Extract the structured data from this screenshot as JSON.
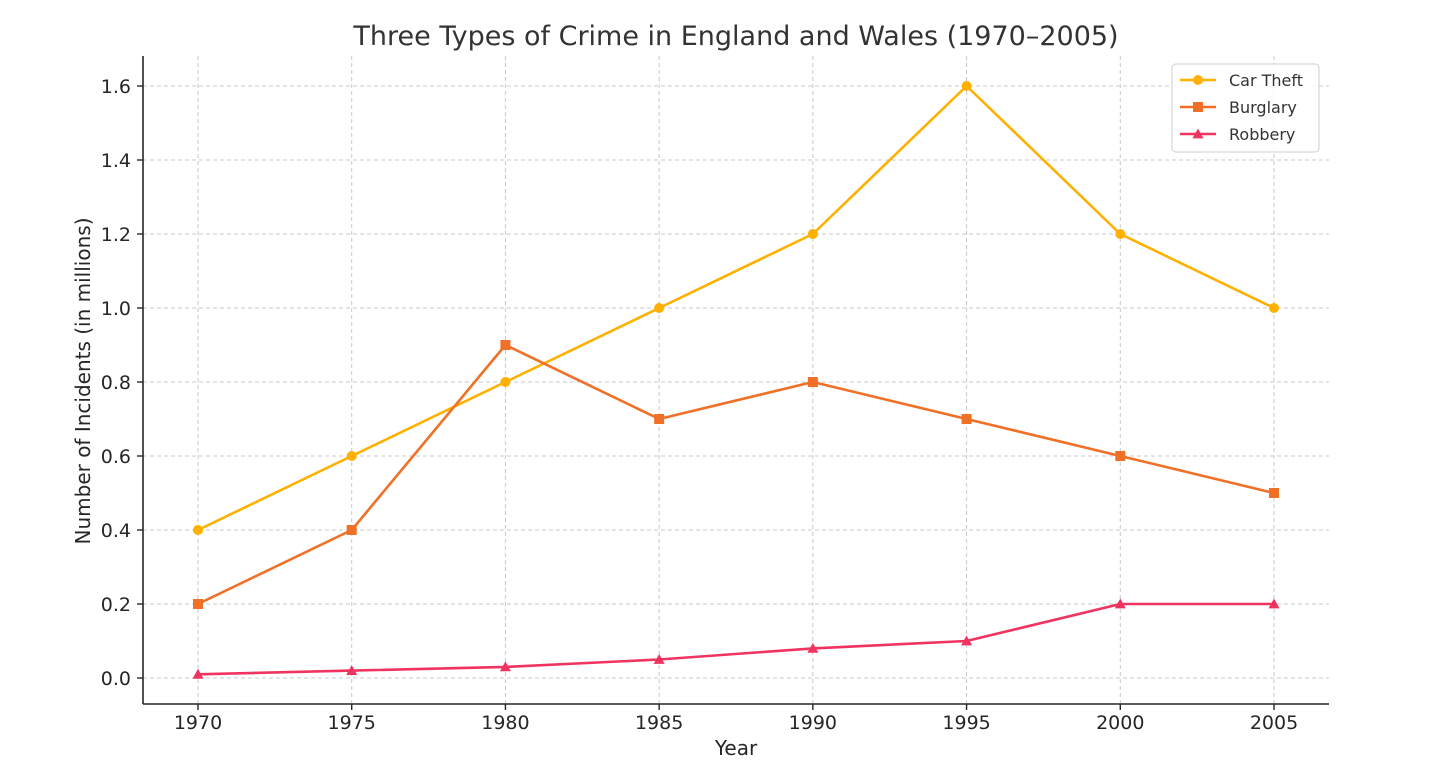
{
  "chart_data": {
    "type": "line",
    "title": "Three Types of Crime in England and Wales (1970–2005)",
    "xlabel": "Year",
    "ylabel": "Number of Incidents (in millions)",
    "x": [
      1970,
      1975,
      1980,
      1985,
      1990,
      1995,
      2000,
      2005
    ],
    "x_tick_labels": [
      "1970",
      "1975",
      "1980",
      "1985",
      "1990",
      "1995",
      "2000",
      "2005"
    ],
    "y_tick_labels": [
      "0.0",
      "0.2",
      "0.4",
      "0.6",
      "0.8",
      "1.0",
      "1.2",
      "1.4",
      "1.6"
    ],
    "ylim": [
      -0.07,
      1.68
    ],
    "grid": true,
    "legend_position": "upper right",
    "series": [
      {
        "name": "Car Theft",
        "color": "#FFB000",
        "marker": "circle",
        "values": [
          0.4,
          0.6,
          0.8,
          1.0,
          1.2,
          1.6,
          1.2,
          1.0
        ]
      },
      {
        "name": "Burglary",
        "color": "#F07028",
        "marker": "square",
        "values": [
          0.2,
          0.4,
          0.9,
          0.7,
          0.8,
          0.7,
          0.6,
          0.5
        ]
      },
      {
        "name": "Robbery",
        "color": "#F03460",
        "marker": "triangle",
        "values": [
          0.01,
          0.02,
          0.03,
          0.05,
          0.08,
          0.1,
          0.2,
          0.2
        ]
      }
    ]
  }
}
